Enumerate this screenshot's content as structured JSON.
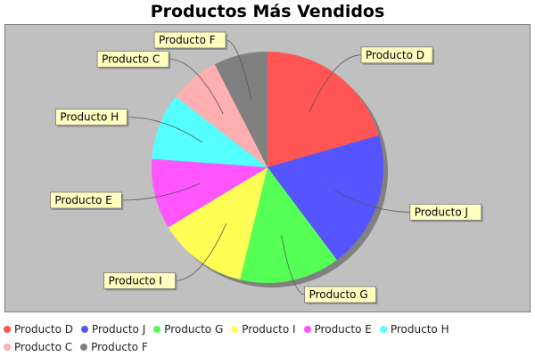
{
  "chart_data": {
    "type": "pie",
    "title": "Productos Más Vendidos",
    "labels": [
      "Producto D",
      "Producto J",
      "Producto G",
      "Producto I",
      "Producto E",
      "Producto H",
      "Producto C",
      "Producto F"
    ],
    "values": [
      20.5,
      19.2,
      14.0,
      12.5,
      9.8,
      9.3,
      7.0,
      7.5
    ],
    "colors": [
      "#ff5555",
      "#5555ff",
      "#55ff55",
      "#ffff55",
      "#ff55ff",
      "#55ffff",
      "#ffafaf",
      "#808080"
    ],
    "plot_background": "#c0c0c0",
    "label_background": "#ffffc0",
    "legend_position": "bottom"
  }
}
